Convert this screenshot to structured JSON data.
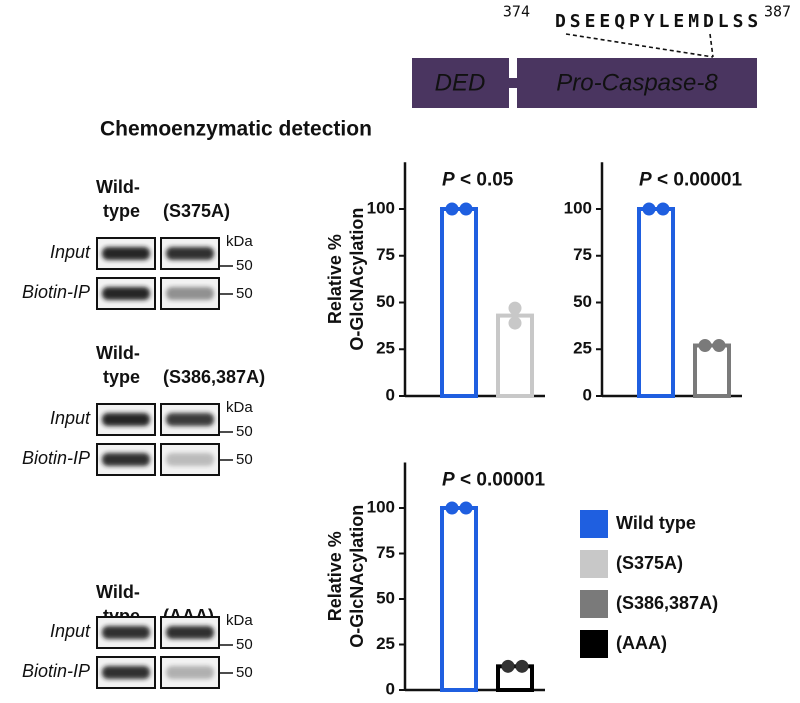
{
  "domain": {
    "start": "374",
    "end": "387",
    "letters": [
      "D",
      "S",
      "E",
      "E",
      "Q",
      "P",
      "Y",
      "L",
      "E",
      "M",
      "D",
      "L",
      "S",
      "S"
    ],
    "letter_colors": [
      "#e8231c",
      "#1f5fe0",
      "#111111",
      "#111111",
      "#111111",
      "#111111",
      "#111111",
      "#111111",
      "#111111",
      "#111111",
      "#e8231c",
      "#111111",
      "#1f5fe0",
      "#1f5fe0"
    ],
    "boxes": [
      "DED",
      "Pro-Caspase-8"
    ]
  },
  "blot_panel": {
    "title": "Chemoenzymatic detection",
    "groups": [
      {
        "wild": [
          "Wild-",
          "type"
        ],
        "mutant": "(S375A)",
        "rows": [
          "Input",
          "Biotin-IP"
        ],
        "unit": "kDa",
        "markers": [
          "50",
          "50"
        ]
      },
      {
        "wild": [
          "Wild-",
          "type"
        ],
        "mutant": "(S386,387A)",
        "rows": [
          "Input",
          "Biotin-IP"
        ],
        "unit": "kDa",
        "markers": [
          "50",
          "50"
        ]
      },
      {
        "wild": [
          "Wild-",
          "type"
        ],
        "mutant": "(AAA)",
        "rows": [
          "Input",
          "Biotin-IP"
        ],
        "unit": "kDa",
        "markers": [
          "50",
          "50"
        ]
      }
    ]
  },
  "chart_data": [
    {
      "type": "bar",
      "ylabel": [
        "Relative %",
        "O-GlcNAcylation"
      ],
      "annotation_symbol": "P",
      "annotation": "< 0.05",
      "values": [
        100,
        43
      ],
      "colors": [
        "#1f5fe0",
        "#c8c8c8"
      ],
      "points": [
        [
          100,
          100
        ],
        [
          47,
          39
        ]
      ],
      "ylim": [
        0,
        125
      ],
      "yticks": [
        0,
        25,
        50,
        75,
        100
      ]
    },
    {
      "type": "bar",
      "annotation_symbol": "P",
      "annotation": "< 0.00001",
      "values": [
        100,
        27
      ],
      "colors": [
        "#1f5fe0",
        "#7a7a7a"
      ],
      "points": [
        [
          100,
          100
        ],
        [
          27,
          27
        ]
      ],
      "ylim": [
        0,
        125
      ],
      "yticks": [
        0,
        25,
        50,
        75,
        100
      ]
    },
    {
      "type": "bar",
      "ylabel": [
        "Relative %",
        "O-GlcNAcylation"
      ],
      "annotation_symbol": "P",
      "annotation": "< 0.00001",
      "values": [
        100,
        13
      ],
      "colors": [
        "#1f5fe0",
        "#000000"
      ],
      "points": [
        [
          100,
          100
        ],
        [
          13,
          13
        ]
      ],
      "ylim": [
        0,
        125
      ],
      "yticks": [
        0,
        25,
        50,
        75,
        100
      ]
    }
  ],
  "legend": [
    {
      "label": "Wild type",
      "color": "#1f5fe0"
    },
    {
      "label": "(S375A)",
      "color": "#c8c8c8"
    },
    {
      "label": "(S386,387A)",
      "color": "#7a7a7a"
    },
    {
      "label": "(AAA)",
      "color": "#000000"
    }
  ]
}
